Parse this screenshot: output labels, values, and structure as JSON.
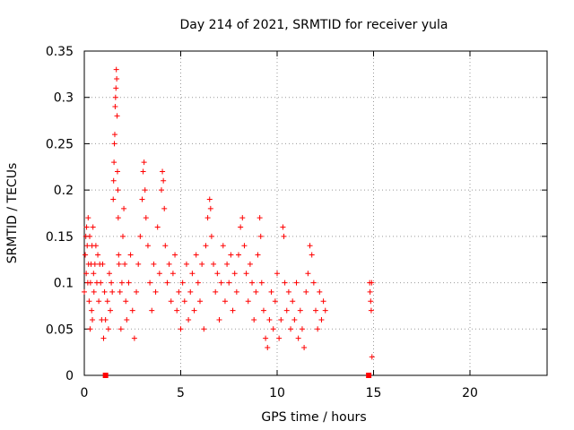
{
  "chart_data": {
    "type": "scatter",
    "title": "Day 214 of 2021, SRMTID for receiver yula",
    "xlabel": "GPS time / hours",
    "ylabel": "SRMTID / TECUs",
    "xlim": [
      0,
      24
    ],
    "ylim": [
      0,
      0.35
    ],
    "xticks": [
      "0",
      "5",
      "10",
      "15",
      "20"
    ],
    "yticks": [
      "0",
      "0.05",
      "0.1",
      "0.15",
      "0.2",
      "0.25",
      "0.3",
      "0.35"
    ],
    "grid": true,
    "legend": "none",
    "marker": "plus",
    "color": "#ff0000",
    "gap_markers_x": [
      1.1,
      14.75
    ],
    "series": [
      {
        "points": [
          [
            0.0,
            0.09
          ],
          [
            0.05,
            0.13
          ],
          [
            0.08,
            0.15
          ],
          [
            0.1,
            0.11
          ],
          [
            0.12,
            0.16
          ],
          [
            0.15,
            0.14
          ],
          [
            0.18,
            0.1
          ],
          [
            0.2,
            0.17
          ],
          [
            0.22,
            0.12
          ],
          [
            0.25,
            0.08
          ],
          [
            0.28,
            0.15
          ],
          [
            0.3,
            0.05
          ],
          [
            0.32,
            0.1
          ],
          [
            0.35,
            0.12
          ],
          [
            0.38,
            0.07
          ],
          [
            0.4,
            0.14
          ],
          [
            0.42,
            0.06
          ],
          [
            0.45,
            0.16
          ],
          [
            0.48,
            0.11
          ],
          [
            0.5,
            0.09
          ],
          [
            0.55,
            0.12
          ],
          [
            0.6,
            0.14
          ],
          [
            0.65,
            0.1
          ],
          [
            0.7,
            0.13
          ],
          [
            0.75,
            0.08
          ],
          [
            0.8,
            0.12
          ],
          [
            0.85,
            0.1
          ],
          [
            0.9,
            0.06
          ],
          [
            0.95,
            0.12
          ],
          [
            1.0,
            0.04
          ],
          [
            1.05,
            0.09
          ],
          [
            1.1,
            0.06
          ],
          [
            1.2,
            0.08
          ],
          [
            1.25,
            0.05
          ],
          [
            1.3,
            0.11
          ],
          [
            1.35,
            0.07
          ],
          [
            1.4,
            0.1
          ],
          [
            1.45,
            0.09
          ],
          [
            1.5,
            0.19
          ],
          [
            1.52,
            0.21
          ],
          [
            1.54,
            0.23
          ],
          [
            1.56,
            0.25
          ],
          [
            1.58,
            0.26
          ],
          [
            1.6,
            0.29
          ],
          [
            1.62,
            0.3
          ],
          [
            1.64,
            0.31
          ],
          [
            1.66,
            0.33
          ],
          [
            1.68,
            0.32
          ],
          [
            1.7,
            0.28
          ],
          [
            1.72,
            0.22
          ],
          [
            1.74,
            0.2
          ],
          [
            1.76,
            0.17
          ],
          [
            1.78,
            0.13
          ],
          [
            1.8,
            0.12
          ],
          [
            1.85,
            0.09
          ],
          [
            1.9,
            0.05
          ],
          [
            1.95,
            0.1
          ],
          [
            2.0,
            0.15
          ],
          [
            2.05,
            0.18
          ],
          [
            2.1,
            0.12
          ],
          [
            2.15,
            0.08
          ],
          [
            2.2,
            0.06
          ],
          [
            2.3,
            0.1
          ],
          [
            2.4,
            0.13
          ],
          [
            2.5,
            0.07
          ],
          [
            2.6,
            0.04
          ],
          [
            2.7,
            0.09
          ],
          [
            2.8,
            0.12
          ],
          [
            2.9,
            0.15
          ],
          [
            3.0,
            0.19
          ],
          [
            3.05,
            0.22
          ],
          [
            3.1,
            0.23
          ],
          [
            3.15,
            0.2
          ],
          [
            3.2,
            0.17
          ],
          [
            3.3,
            0.14
          ],
          [
            3.4,
            0.1
          ],
          [
            3.5,
            0.07
          ],
          [
            3.6,
            0.12
          ],
          [
            3.7,
            0.09
          ],
          [
            3.8,
            0.16
          ],
          [
            3.9,
            0.11
          ],
          [
            4.0,
            0.2
          ],
          [
            4.05,
            0.22
          ],
          [
            4.1,
            0.21
          ],
          [
            4.15,
            0.18
          ],
          [
            4.2,
            0.14
          ],
          [
            4.3,
            0.1
          ],
          [
            4.4,
            0.12
          ],
          [
            4.5,
            0.08
          ],
          [
            4.6,
            0.11
          ],
          [
            4.7,
            0.13
          ],
          [
            4.8,
            0.07
          ],
          [
            4.9,
            0.09
          ],
          [
            5.0,
            0.05
          ],
          [
            5.1,
            0.1
          ],
          [
            5.2,
            0.08
          ],
          [
            5.3,
            0.12
          ],
          [
            5.4,
            0.06
          ],
          [
            5.5,
            0.09
          ],
          [
            5.6,
            0.11
          ],
          [
            5.7,
            0.07
          ],
          [
            5.8,
            0.13
          ],
          [
            5.9,
            0.1
          ],
          [
            6.0,
            0.08
          ],
          [
            6.1,
            0.12
          ],
          [
            6.2,
            0.05
          ],
          [
            6.3,
            0.14
          ],
          [
            6.4,
            0.17
          ],
          [
            6.5,
            0.19
          ],
          [
            6.55,
            0.18
          ],
          [
            6.6,
            0.15
          ],
          [
            6.7,
            0.12
          ],
          [
            6.8,
            0.09
          ],
          [
            6.9,
            0.11
          ],
          [
            7.0,
            0.06
          ],
          [
            7.1,
            0.1
          ],
          [
            7.2,
            0.14
          ],
          [
            7.3,
            0.08
          ],
          [
            7.4,
            0.12
          ],
          [
            7.5,
            0.1
          ],
          [
            7.6,
            0.13
          ],
          [
            7.7,
            0.07
          ],
          [
            7.8,
            0.11
          ],
          [
            7.9,
            0.09
          ],
          [
            8.0,
            0.13
          ],
          [
            8.1,
            0.16
          ],
          [
            8.2,
            0.17
          ],
          [
            8.3,
            0.14
          ],
          [
            8.4,
            0.11
          ],
          [
            8.5,
            0.08
          ],
          [
            8.6,
            0.12
          ],
          [
            8.7,
            0.1
          ],
          [
            8.8,
            0.06
          ],
          [
            8.9,
            0.09
          ],
          [
            9.0,
            0.13
          ],
          [
            9.1,
            0.17
          ],
          [
            9.15,
            0.15
          ],
          [
            9.2,
            0.1
          ],
          [
            9.3,
            0.07
          ],
          [
            9.4,
            0.04
          ],
          [
            9.5,
            0.03
          ],
          [
            9.6,
            0.06
          ],
          [
            9.7,
            0.09
          ],
          [
            9.8,
            0.05
          ],
          [
            9.9,
            0.08
          ],
          [
            10.0,
            0.11
          ],
          [
            10.1,
            0.04
          ],
          [
            10.2,
            0.06
          ],
          [
            10.3,
            0.16
          ],
          [
            10.35,
            0.15
          ],
          [
            10.4,
            0.1
          ],
          [
            10.5,
            0.07
          ],
          [
            10.6,
            0.09
          ],
          [
            10.7,
            0.05
          ],
          [
            10.8,
            0.08
          ],
          [
            10.9,
            0.06
          ],
          [
            11.0,
            0.1
          ],
          [
            11.1,
            0.04
          ],
          [
            11.2,
            0.07
          ],
          [
            11.3,
            0.05
          ],
          [
            11.4,
            0.03
          ],
          [
            11.5,
            0.09
          ],
          [
            11.6,
            0.11
          ],
          [
            11.7,
            0.14
          ],
          [
            11.8,
            0.13
          ],
          [
            11.9,
            0.1
          ],
          [
            12.0,
            0.07
          ],
          [
            12.1,
            0.05
          ],
          [
            12.2,
            0.09
          ],
          [
            12.3,
            0.06
          ],
          [
            12.4,
            0.08
          ],
          [
            12.5,
            0.07
          ],
          [
            14.8,
            0.1
          ],
          [
            14.82,
            0.09
          ],
          [
            14.85,
            0.08
          ],
          [
            14.88,
            0.07
          ],
          [
            14.9,
            0.1
          ],
          [
            14.92,
            0.02
          ]
        ]
      }
    ]
  }
}
